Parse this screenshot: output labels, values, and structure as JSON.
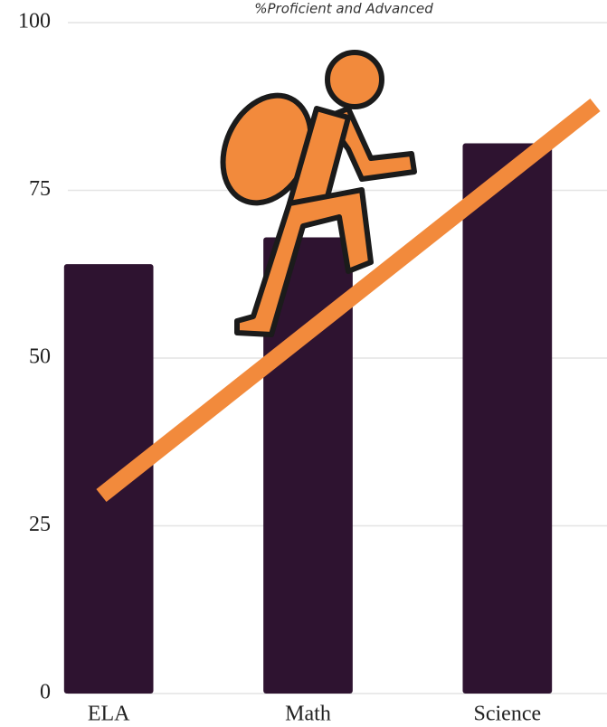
{
  "chart_data": {
    "type": "bar",
    "title": "%Proficient and Advanced",
    "categories": [
      "ELA",
      "Math",
      "Science"
    ],
    "values": [
      64,
      68,
      82
    ],
    "color": "#2e1330",
    "ylim": [
      0,
      100
    ],
    "yticks": [
      0,
      25,
      50,
      75,
      100
    ],
    "grid": true
  }
}
